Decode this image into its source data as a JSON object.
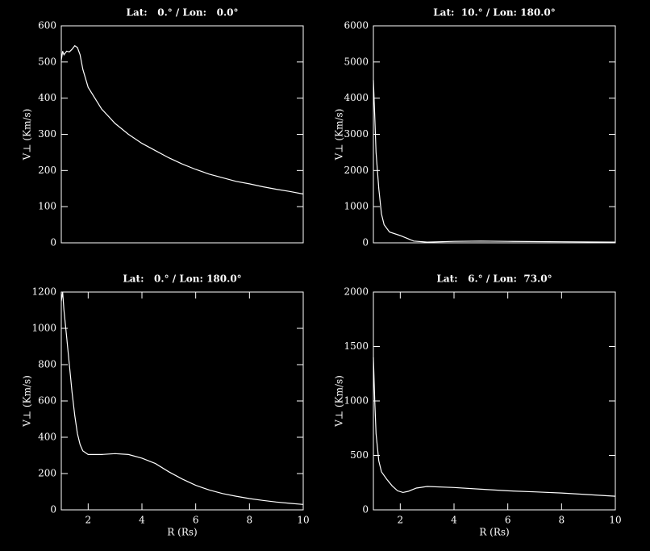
{
  "chart_data": [
    {
      "type": "line",
      "title": "Lat:   0.° / Lon:   0.0°",
      "ylabel": "V⊥ (Km/s)",
      "color": "#ffffff",
      "x": [
        1.0,
        1.05,
        1.1,
        1.2,
        1.3,
        1.4,
        1.5,
        1.6,
        1.7,
        1.8,
        2.0,
        2.5,
        3,
        3.5,
        4,
        4.5,
        5,
        5.5,
        6,
        6.5,
        7,
        7.5,
        8,
        8.5,
        9,
        9.5,
        10
      ],
      "values": [
        505,
        530,
        520,
        530,
        528,
        535,
        545,
        540,
        520,
        480,
        430,
        370,
        330,
        300,
        275,
        255,
        235,
        218,
        203,
        190,
        180,
        170,
        163,
        155,
        148,
        142,
        135
      ],
      "xlim": [
        1,
        10
      ],
      "ylim": [
        0,
        600
      ],
      "yticks": [
        0,
        100,
        200,
        300,
        400,
        500,
        600
      ]
    },
    {
      "type": "line",
      "title": "Lat:  10.° / Lon: 180.0°",
      "ylabel": "V⊥ (Km/s)",
      "color": "#ffffff",
      "x": [
        1.0,
        1.05,
        1.1,
        1.2,
        1.3,
        1.4,
        1.6,
        2.0,
        2.5,
        3,
        4,
        5,
        6,
        8,
        10
      ],
      "values": [
        4500,
        3500,
        2500,
        1500,
        800,
        500,
        300,
        200,
        50,
        20,
        40,
        50,
        40,
        30,
        20
      ],
      "xlim": [
        1,
        10
      ],
      "ylim": [
        0,
        6000
      ],
      "yticks": [
        0,
        1000,
        2000,
        3000,
        4000,
        5000,
        6000
      ]
    },
    {
      "type": "line",
      "title": "Lat:   0.° / Lon: 180.0°",
      "ylabel": "V⊥ (Km/s)",
      "xlabel": "R (Rs)",
      "color": "#ffffff",
      "x": [
        1.0,
        1.05,
        1.1,
        1.2,
        1.3,
        1.4,
        1.5,
        1.6,
        1.7,
        1.8,
        2.0,
        2.5,
        3,
        3.5,
        4,
        4.5,
        5,
        5.5,
        6,
        6.5,
        7,
        7.5,
        8,
        8.5,
        9,
        9.5,
        10
      ],
      "values": [
        1150,
        1200,
        1100,
        950,
        800,
        650,
        520,
        420,
        360,
        325,
        305,
        305,
        310,
        305,
        285,
        255,
        210,
        170,
        135,
        110,
        90,
        75,
        62,
        52,
        43,
        36,
        30
      ],
      "xlim": [
        1,
        10
      ],
      "xticks": [
        2,
        4,
        6,
        8,
        10
      ],
      "ylim": [
        0,
        1200
      ],
      "yticks": [
        0,
        200,
        400,
        600,
        800,
        1000,
        1200
      ]
    },
    {
      "type": "line",
      "title": "Lat:   6.° / Lon:  73.0°",
      "ylabel": "V⊥ (Km/s)",
      "xlabel": "R (Rs)",
      "color": "#ffffff",
      "x": [
        1.0,
        1.05,
        1.1,
        1.2,
        1.3,
        1.5,
        1.7,
        1.9,
        2.1,
        2.3,
        2.6,
        3,
        4,
        5,
        6,
        7,
        8,
        9,
        10
      ],
      "values": [
        1400,
        1000,
        700,
        450,
        350,
        280,
        220,
        175,
        160,
        170,
        200,
        215,
        205,
        190,
        175,
        165,
        155,
        140,
        125
      ],
      "xlim": [
        1,
        10
      ],
      "xticks": [
        2,
        4,
        6,
        8,
        10
      ],
      "ylim": [
        0,
        2000
      ],
      "yticks": [
        0,
        500,
        1000,
        1500,
        2000
      ]
    }
  ]
}
